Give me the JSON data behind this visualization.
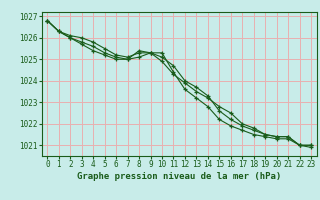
{
  "xlabel": "Graphe pression niveau de la mer (hPa)",
  "ylim": [
    1020.5,
    1027.2
  ],
  "xlim": [
    -0.5,
    23.5
  ],
  "yticks": [
    1021,
    1022,
    1023,
    1024,
    1025,
    1026,
    1027
  ],
  "xticks": [
    0,
    1,
    2,
    3,
    4,
    5,
    6,
    7,
    8,
    9,
    10,
    11,
    12,
    13,
    14,
    15,
    16,
    17,
    18,
    19,
    20,
    21,
    22,
    23
  ],
  "background_color": "#c8ece9",
  "grid_color": "#e8b0b0",
  "line_color": "#1a5c1a",
  "line1": [
    1026.8,
    1026.3,
    1026.1,
    1026.0,
    1025.8,
    1025.5,
    1025.2,
    1025.1,
    1025.3,
    1025.3,
    1024.9,
    1024.3,
    1023.9,
    1023.5,
    1023.2,
    1022.8,
    1022.5,
    1022.0,
    1021.8,
    1021.5,
    1021.4,
    1021.4,
    1021.0,
    1021.0
  ],
  "line2": [
    1026.8,
    1026.3,
    1026.0,
    1025.7,
    1025.4,
    1025.2,
    1025.0,
    1025.0,
    1025.1,
    1025.3,
    1025.3,
    1024.4,
    1023.6,
    1023.2,
    1022.8,
    1022.2,
    1021.9,
    1021.7,
    1021.5,
    1021.4,
    1021.3,
    1021.3,
    1021.0,
    1020.9
  ],
  "line3": [
    1026.8,
    1026.3,
    1026.0,
    1025.8,
    1025.6,
    1025.3,
    1025.1,
    1025.0,
    1025.4,
    1025.3,
    1025.1,
    1024.7,
    1024.0,
    1023.7,
    1023.3,
    1022.6,
    1022.2,
    1021.9,
    1021.7,
    1021.5,
    1021.4,
    1021.4,
    1021.0,
    1021.0
  ],
  "tick_fontsize": 5.5,
  "xlabel_fontsize": 6.5,
  "marker_size": 3.5,
  "line_width": 0.8
}
